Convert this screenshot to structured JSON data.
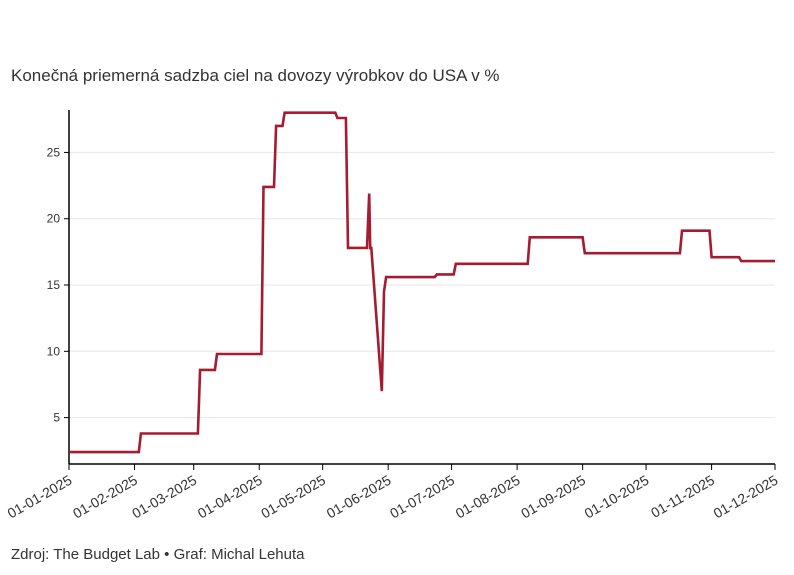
{
  "title": "Konečná priemerná sadzba ciel na dovozy výrobkov do USA v %",
  "footer": "Zdroj: The Budget Lab • Graf: Michal Lehuta",
  "colors": {
    "line": "#a51c30",
    "axis": "#000000",
    "grid": "#e6e6e6",
    "text": "#333333"
  },
  "chart_data": {
    "type": "line",
    "title": "Konečná priemerná sadzba ciel na dovozy výrobkov do USA v %",
    "xlabel": "",
    "ylabel": "",
    "ylim": [
      1.5,
      28.2
    ],
    "xlim_days": [
      0,
      334
    ],
    "grid": "horizontal",
    "y_ticks": [
      5,
      10,
      15,
      20,
      25
    ],
    "x_ticks": [
      {
        "day": 0,
        "label": "01-01-2025"
      },
      {
        "day": 31,
        "label": "01-02-2025"
      },
      {
        "day": 59,
        "label": "01-03-2025"
      },
      {
        "day": 90,
        "label": "01-04-2025"
      },
      {
        "day": 120,
        "label": "01-05-2025"
      },
      {
        "day": 151,
        "label": "01-06-2025"
      },
      {
        "day": 181,
        "label": "01-07-2025"
      },
      {
        "day": 212,
        "label": "01-08-2025"
      },
      {
        "day": 243,
        "label": "01-09-2025"
      },
      {
        "day": 273,
        "label": "01-10-2025"
      },
      {
        "day": 304,
        "label": "01-11-2025"
      },
      {
        "day": 334,
        "label": "01-12-2025"
      }
    ],
    "series": [
      {
        "name": "Konečná priemerná sadzba ciel",
        "x_days": [
          0,
          33,
          34,
          61,
          62,
          69,
          70,
          91,
          92,
          97,
          98,
          101,
          102,
          126,
          127,
          131,
          132,
          141,
          142,
          142.5,
          143,
          148,
          149,
          150,
          151,
          152,
          173,
          174,
          182,
          183,
          217,
          218,
          243,
          244,
          289,
          290,
          303,
          304,
          317,
          318,
          334
        ],
        "values": [
          2.4,
          2.4,
          3.8,
          3.8,
          8.6,
          8.6,
          9.8,
          9.8,
          22.4,
          22.4,
          27.0,
          27.0,
          28.0,
          28.0,
          27.6,
          27.6,
          17.8,
          17.8,
          21.9,
          17.8,
          17.8,
          7.0,
          14.5,
          15.6,
          15.6,
          15.6,
          15.6,
          15.8,
          15.8,
          16.6,
          16.6,
          18.6,
          18.6,
          17.4,
          17.4,
          19.1,
          19.1,
          17.1,
          17.1,
          16.8,
          16.8
        ]
      }
    ]
  }
}
